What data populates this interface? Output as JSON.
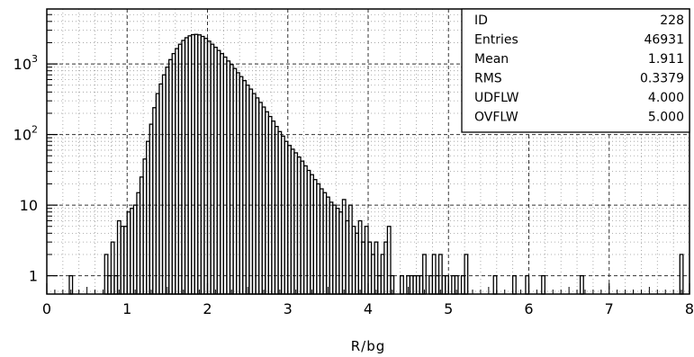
{
  "chart_data": {
    "type": "histogram",
    "xlabel": "R/bg",
    "ylabel": "",
    "title": "",
    "y_scale": "log",
    "xlim": [
      0,
      8
    ],
    "ylim": [
      0.55,
      6000
    ],
    "x_ticks": [
      "0",
      "1",
      "2",
      "3",
      "4",
      "5",
      "6",
      "7",
      "8"
    ],
    "y_ticks": [
      {
        "value": 1,
        "base": "1",
        "exp": ""
      },
      {
        "value": 10,
        "base": "10",
        "exp": ""
      },
      {
        "value": 100,
        "base": "10",
        "exp": "2"
      },
      {
        "value": 1000,
        "base": "10",
        "exp": "3"
      }
    ],
    "grid": true,
    "bin_width": 0.04,
    "bins": [
      [
        0.28,
        1
      ],
      [
        0.72,
        2
      ],
      [
        0.76,
        1
      ],
      [
        0.8,
        3
      ],
      [
        0.84,
        1
      ],
      [
        0.88,
        6
      ],
      [
        0.92,
        5
      ],
      [
        0.96,
        5
      ],
      [
        1.0,
        8
      ],
      [
        1.04,
        9
      ],
      [
        1.08,
        10
      ],
      [
        1.12,
        15
      ],
      [
        1.16,
        25
      ],
      [
        1.2,
        45
      ],
      [
        1.24,
        80
      ],
      [
        1.28,
        140
      ],
      [
        1.32,
        240
      ],
      [
        1.36,
        380
      ],
      [
        1.4,
        520
      ],
      [
        1.44,
        700
      ],
      [
        1.48,
        900
      ],
      [
        1.52,
        1150
      ],
      [
        1.56,
        1400
      ],
      [
        1.6,
        1650
      ],
      [
        1.64,
        1900
      ],
      [
        1.68,
        2150
      ],
      [
        1.72,
        2350
      ],
      [
        1.76,
        2500
      ],
      [
        1.8,
        2600
      ],
      [
        1.84,
        2620
      ],
      [
        1.88,
        2580
      ],
      [
        1.92,
        2450
      ],
      [
        1.96,
        2300
      ],
      [
        2.0,
        2100
      ],
      [
        2.04,
        1900
      ],
      [
        2.08,
        1720
      ],
      [
        2.12,
        1550
      ],
      [
        2.16,
        1400
      ],
      [
        2.2,
        1250
      ],
      [
        2.24,
        1100
      ],
      [
        2.28,
        980
      ],
      [
        2.32,
        860
      ],
      [
        2.36,
        750
      ],
      [
        2.4,
        660
      ],
      [
        2.44,
        580
      ],
      [
        2.48,
        500
      ],
      [
        2.52,
        440
      ],
      [
        2.56,
        380
      ],
      [
        2.6,
        330
      ],
      [
        2.64,
        285
      ],
      [
        2.68,
        245
      ],
      [
        2.72,
        210
      ],
      [
        2.76,
        180
      ],
      [
        2.8,
        155
      ],
      [
        2.84,
        130
      ],
      [
        2.88,
        110
      ],
      [
        2.92,
        95
      ],
      [
        2.96,
        80
      ],
      [
        3.0,
        70
      ],
      [
        3.04,
        62
      ],
      [
        3.08,
        55
      ],
      [
        3.12,
        48
      ],
      [
        3.16,
        42
      ],
      [
        3.2,
        36
      ],
      [
        3.24,
        31
      ],
      [
        3.28,
        27
      ],
      [
        3.32,
        23
      ],
      [
        3.36,
        20
      ],
      [
        3.4,
        17
      ],
      [
        3.44,
        15
      ],
      [
        3.48,
        13
      ],
      [
        3.52,
        11
      ],
      [
        3.56,
        10
      ],
      [
        3.6,
        9
      ],
      [
        3.64,
        8
      ],
      [
        3.68,
        12
      ],
      [
        3.72,
        6
      ],
      [
        3.76,
        10
      ],
      [
        3.8,
        5
      ],
      [
        3.84,
        4
      ],
      [
        3.88,
        6
      ],
      [
        3.92,
        3
      ],
      [
        3.96,
        5
      ],
      [
        4.0,
        3
      ],
      [
        4.04,
        2
      ],
      [
        4.08,
        3
      ],
      [
        4.12,
        1
      ],
      [
        4.16,
        2
      ],
      [
        4.2,
        3
      ],
      [
        4.24,
        5
      ],
      [
        4.28,
        1
      ],
      [
        4.4,
        1
      ],
      [
        4.48,
        1
      ],
      [
        4.52,
        1
      ],
      [
        4.56,
        1
      ],
      [
        4.6,
        1
      ],
      [
        4.64,
        1
      ],
      [
        4.68,
        2
      ],
      [
        4.76,
        1
      ],
      [
        4.8,
        2
      ],
      [
        4.84,
        1
      ],
      [
        4.88,
        2
      ],
      [
        4.92,
        1
      ],
      [
        4.96,
        1
      ],
      [
        5.04,
        1
      ],
      [
        5.08,
        1
      ],
      [
        5.16,
        1
      ],
      [
        5.2,
        2
      ],
      [
        5.56,
        1
      ],
      [
        5.8,
        1
      ],
      [
        5.96,
        1
      ],
      [
        6.16,
        1
      ],
      [
        6.64,
        1
      ],
      [
        7.88,
        2
      ]
    ],
    "stats": [
      {
        "label": "ID",
        "value": "228"
      },
      {
        "label": "Entries",
        "value": "46931"
      },
      {
        "label": "Mean",
        "value": "1.911"
      },
      {
        "label": "RMS",
        "value": "0.3379"
      },
      {
        "label": "UDFLW",
        "value": "4.000"
      },
      {
        "label": "OVFLW",
        "value": "5.000"
      }
    ]
  }
}
